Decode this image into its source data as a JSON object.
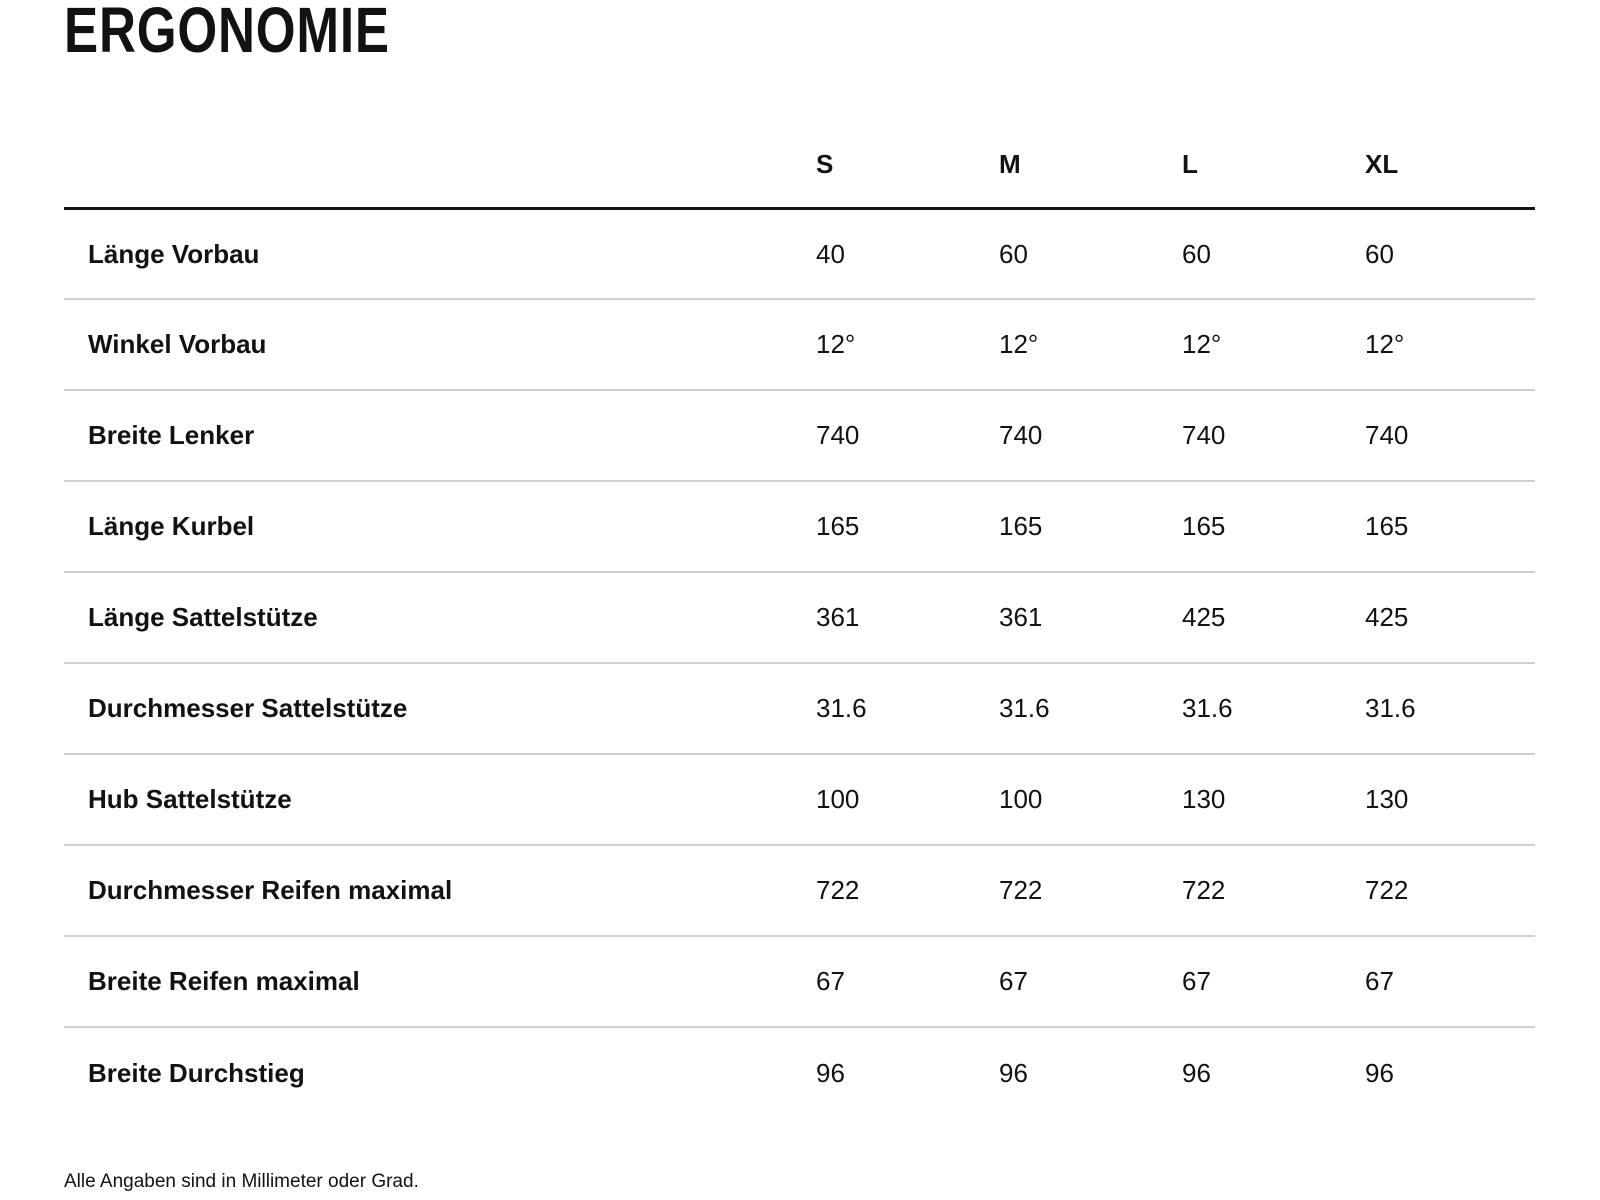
{
  "page": {
    "title": "ERGONOMIE",
    "footnote": "Alle Angaben sind in Millimeter oder Grad."
  },
  "table": {
    "columns": [
      "S",
      "M",
      "L",
      "XL"
    ],
    "rows": [
      {
        "label": "Länge Vorbau",
        "values": [
          "40",
          "60",
          "60",
          "60"
        ]
      },
      {
        "label": "Winkel Vorbau",
        "values": [
          "12°",
          "12°",
          "12°",
          "12°"
        ]
      },
      {
        "label": "Breite Lenker",
        "values": [
          "740",
          "740",
          "740",
          "740"
        ]
      },
      {
        "label": "Länge Kurbel",
        "values": [
          "165",
          "165",
          "165",
          "165"
        ]
      },
      {
        "label": "Länge Sattelstütze",
        "values": [
          "361",
          "361",
          "425",
          "425"
        ]
      },
      {
        "label": "Durchmesser Sattelstütze",
        "values": [
          "31.6",
          "31.6",
          "31.6",
          "31.6"
        ]
      },
      {
        "label": "Hub Sattelstütze",
        "values": [
          "100",
          "100",
          "130",
          "130"
        ]
      },
      {
        "label": "Durchmesser Reifen maximal",
        "values": [
          "722",
          "722",
          "722",
          "722"
        ]
      },
      {
        "label": "Breite Reifen maximal",
        "values": [
          "67",
          "67",
          "67",
          "67"
        ]
      },
      {
        "label": "Breite Durchstieg",
        "values": [
          "96",
          "96",
          "96",
          "96"
        ]
      }
    ]
  },
  "chart_data": {
    "type": "table",
    "title": "ERGONOMIE",
    "columns": [
      "S",
      "M",
      "L",
      "XL"
    ],
    "row_labels": [
      "Länge Vorbau",
      "Winkel Vorbau",
      "Breite Lenker",
      "Länge Kurbel",
      "Länge Sattelstütze",
      "Durchmesser Sattelstütze",
      "Hub Sattelstütze",
      "Durchmesser Reifen maximal",
      "Breite Reifen maximal",
      "Breite Durchstieg"
    ],
    "series": [
      {
        "name": "S",
        "values": [
          "40",
          "12°",
          "740",
          "165",
          "361",
          "31.6",
          "100",
          "722",
          "67",
          "96"
        ]
      },
      {
        "name": "M",
        "values": [
          "60",
          "12°",
          "740",
          "165",
          "361",
          "31.6",
          "100",
          "722",
          "67",
          "96"
        ]
      },
      {
        "name": "L",
        "values": [
          "60",
          "12°",
          "740",
          "165",
          "425",
          "31.6",
          "130",
          "722",
          "67",
          "96"
        ]
      },
      {
        "name": "XL",
        "values": [
          "60",
          "12°",
          "740",
          "165",
          "425",
          "31.6",
          "130",
          "722",
          "67",
          "96"
        ]
      }
    ],
    "footnote": "Alle Angaben sind in Millimeter oder Grad.",
    "units": "millimeters or degrees",
    "grid": "horizontal row dividers only",
    "legend_position": "none"
  },
  "colors": {
    "text": "#121212",
    "header_rule": "#151515",
    "row_divider": "#cfcfcf",
    "background": "#ffffff"
  }
}
